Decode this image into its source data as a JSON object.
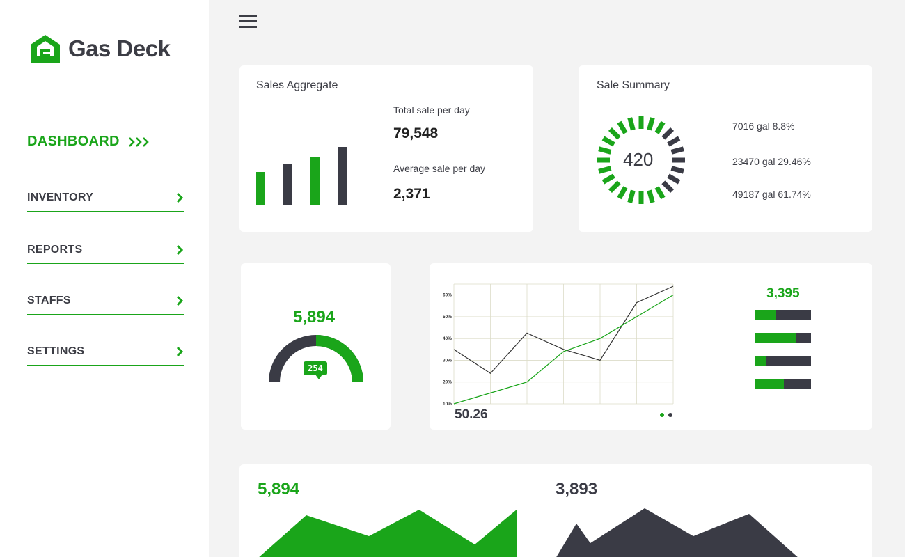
{
  "brand": {
    "name": "Gas Deck",
    "color": "#1aa51a"
  },
  "nav": {
    "dashboard": "DASHBOARD",
    "items": [
      {
        "label": "INVENTORY"
      },
      {
        "label": "REPORTS"
      },
      {
        "label": "STAFFS"
      },
      {
        "label": "SETTINGS"
      }
    ]
  },
  "sales_aggregate": {
    "title": "Sales Aggregate",
    "total_label": "Total sale per day",
    "total_value": "79,548",
    "average_label": "Average sale per day",
    "average_value": "2,371"
  },
  "sale_summary": {
    "title": "Sale Summary",
    "center_value": "420",
    "rows": [
      "7016 gal 8.8%",
      "23470 gal 29.46%",
      "49187 gal 61.74%"
    ]
  },
  "gauge": {
    "value": "5,894",
    "badge": "254",
    "fill_fraction": 0.5
  },
  "line_chart": {
    "footer_value": "50.26",
    "pager": {
      "pages": 2,
      "active": 1
    }
  },
  "progress_card": {
    "value": "3,395",
    "bars": [
      0.38,
      0.74,
      0.2,
      0.52
    ]
  },
  "bottom": {
    "left_value": "5,894",
    "right_value": "3,893"
  },
  "colors": {
    "green": "#1aa51a",
    "dark": "#3a3b45",
    "bg": "#f3f3f3"
  },
  "chart_data": {
    "type": "line",
    "x": [
      0,
      1,
      2,
      3,
      4,
      5,
      6
    ],
    "ylim": [
      10,
      65
    ],
    "yticks": [
      "10%",
      "20%",
      "30%",
      "40%",
      "50%",
      "60%"
    ],
    "series": [
      {
        "values": [
          35,
          24,
          42.5,
          35,
          30,
          56.5,
          64
        ]
      },
      {
        "values": [
          10,
          15,
          20,
          34,
          40,
          50,
          60
        ]
      }
    ],
    "grid": true
  }
}
